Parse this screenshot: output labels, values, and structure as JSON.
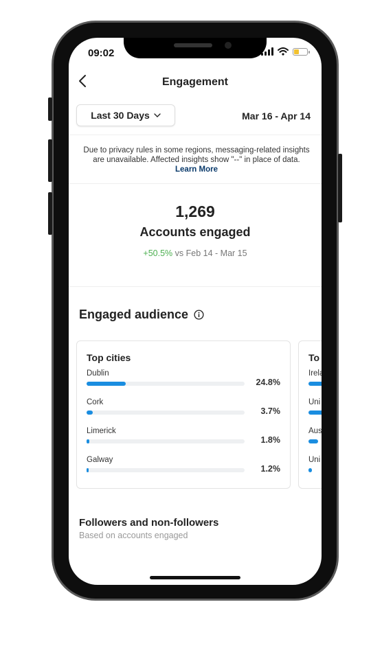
{
  "status": {
    "time": "09:02"
  },
  "nav": {
    "title": "Engagement"
  },
  "filter": {
    "period_label": "Last 30 Days",
    "date_range": "Mar 16 - Apr 14"
  },
  "notice": {
    "text": "Due to privacy rules in some regions, messaging-related insights are unavailable. Affected insights show \"--\" in place of data.",
    "link": "Learn More"
  },
  "summary": {
    "count": "1,269",
    "label": "Accounts engaged",
    "change": "+50.5%",
    "comparison": "vs Feb 14 - Mar 15"
  },
  "engaged_audience": {
    "title": "Engaged audience",
    "top_cities": {
      "title": "Top cities",
      "items": [
        {
          "name": "Dublin",
          "percent": "24.8%",
          "value": 24.8
        },
        {
          "name": "Cork",
          "percent": "3.7%",
          "value": 3.7
        },
        {
          "name": "Limerick",
          "percent": "1.8%",
          "value": 1.8
        },
        {
          "name": "Galway",
          "percent": "1.2%",
          "value": 1.2
        }
      ]
    },
    "top_countries": {
      "title": "To",
      "items": [
        {
          "name": "Irela",
          "value": 70
        },
        {
          "name": "Uni",
          "value": 20
        },
        {
          "name": "Aus",
          "value": 6
        },
        {
          "name": "Uni",
          "value": 2
        }
      ]
    }
  },
  "followers": {
    "title": "Followers and non-followers",
    "subtitle": "Based on accounts engaged"
  },
  "colors": {
    "bar": "#1a8de0",
    "positive": "#4caf50",
    "link": "#0a3a6b"
  }
}
